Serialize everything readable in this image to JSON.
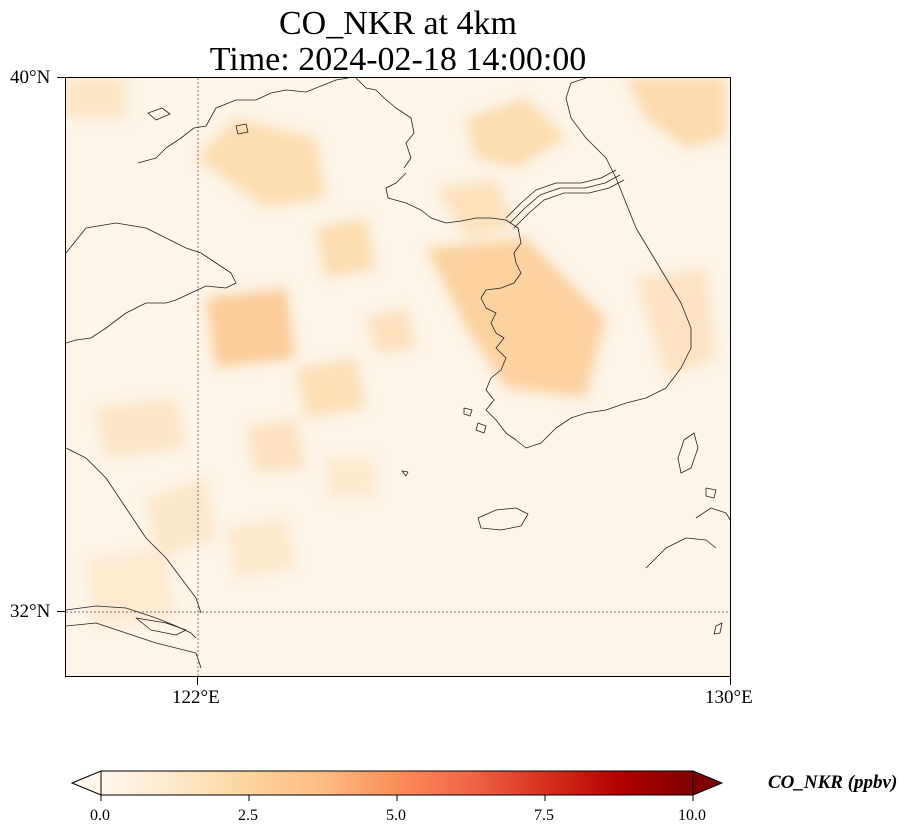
{
  "title": {
    "line1": "CO_NKR at 4km",
    "line2": "Time: 2024-02-18 14:00:00"
  },
  "map": {
    "lat_range": [
      31.2,
      40.0
    ],
    "lon_range": [
      120.4,
      130.0
    ],
    "gridlines": {
      "latitudes": [
        {
          "label": "40°N",
          "value": 40
        },
        {
          "label": "32°N",
          "value": 32
        }
      ],
      "longitudes": [
        {
          "label": "122°E",
          "value": 122
        },
        {
          "label": "130°E",
          "value": 130
        }
      ]
    },
    "coastline_color": "#222222"
  },
  "colorbar": {
    "title": "CO_NKR (ppbv)",
    "min": 0.0,
    "max": 10.0,
    "ticks": [
      "0.0",
      "2.5",
      "5.0",
      "7.5",
      "10.0"
    ],
    "colormap": "OrRd",
    "extend": "both",
    "colors": [
      "#fff7ec",
      "#fee8c8",
      "#fdd49e",
      "#fdbb84",
      "#fc8d59",
      "#ef6548",
      "#d7301f",
      "#b30000",
      "#7f0000"
    ]
  }
}
